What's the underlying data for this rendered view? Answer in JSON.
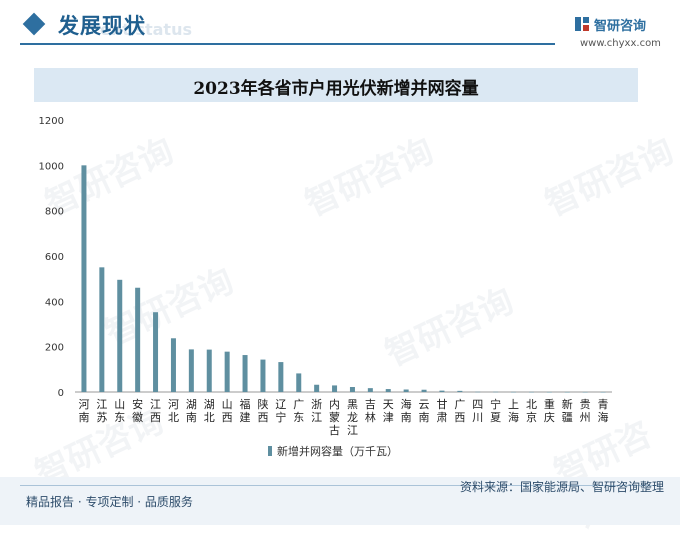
{
  "header": {
    "section_title": "发展现状",
    "section_subtitle": "ent status",
    "brand_name": "智研咨询",
    "brand_url": "www.chyxx.com"
  },
  "footer": {
    "left_text": "精品报告 · 专项定制 · 品质服务",
    "right_text": "资料来源：国家能源局、智研咨询整理"
  },
  "watermark": "智研咨询",
  "colors": {
    "bar": "#5f8fa0",
    "accent": "#2e6fa0"
  },
  "chart_data": {
    "type": "bar",
    "title": "2023年各省市户用光伏新增并网容量",
    "xlabel": "",
    "ylabel": "",
    "ylim": [
      0,
      1200
    ],
    "yticks": [
      "0",
      "200",
      "400",
      "600",
      "800",
      "1000",
      "1200"
    ],
    "legend": "新增并网容量（万千瓦）",
    "legend_position": "bottom",
    "categories": [
      "河南",
      "江苏",
      "山东",
      "安徽",
      "江西",
      "河北",
      "湖南",
      "湖北",
      "山西",
      "福建",
      "陕西",
      "辽宁",
      "广东",
      "浙江",
      "内蒙古",
      "黑龙江",
      "吉林",
      "天津",
      "海南",
      "云南",
      "甘肃",
      "广西",
      "四川",
      "宁夏",
      "上海",
      "北京",
      "重庆",
      "新疆",
      "贵州",
      "青海"
    ],
    "values": [
      1000,
      550,
      495,
      460,
      352,
      237,
      188,
      187,
      178,
      163,
      143,
      132,
      82,
      32,
      29,
      22,
      17,
      13,
      11,
      10,
      6,
      5,
      1,
      1,
      0.5,
      0.5,
      0.3,
      0.3,
      0.2,
      0.2
    ]
  }
}
